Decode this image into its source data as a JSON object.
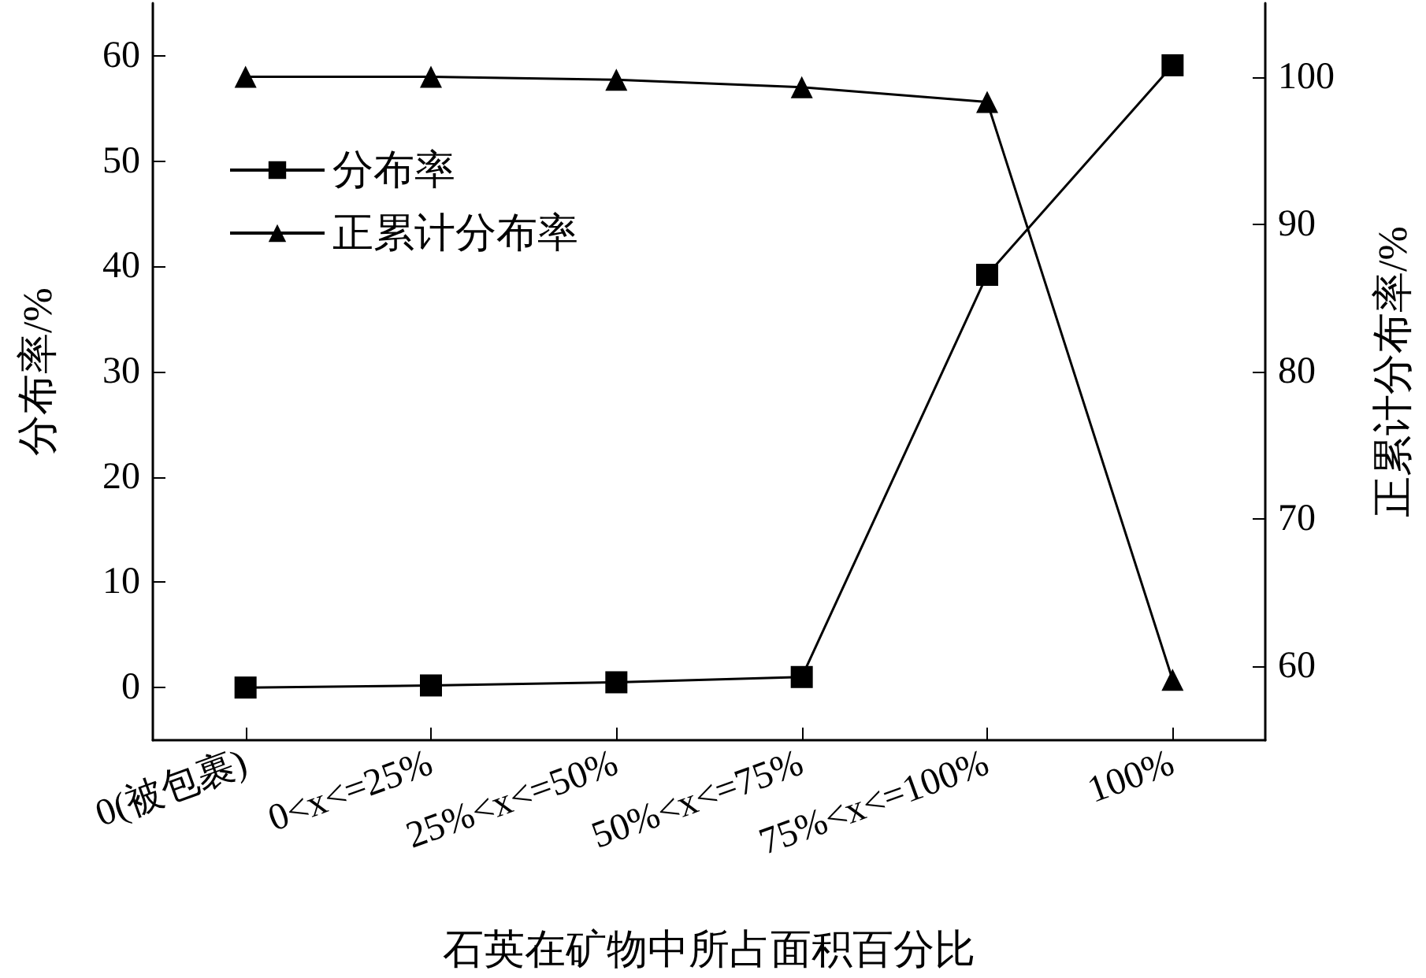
{
  "chart_data": {
    "type": "line",
    "xlabel": "石英在矿物中所占面积百分比",
    "ylabel": "分布率/%",
    "y2label": "正累计分布率/%",
    "categories": [
      "0(被包裹)",
      "0<x<=25%",
      "25%<x<=50%",
      "50%<x<=75%",
      "75%<x<=100%",
      "100%"
    ],
    "series": [
      {
        "name": "分布率",
        "color": "#000000",
        "marker": "square",
        "values": [
          0,
          0.2,
          0.5,
          1.0,
          39.2,
          59.1
        ]
      },
      {
        "name": "正累计分布率",
        "color": "#000000",
        "marker": "triangle",
        "axis": "y2",
        "values": [
          100,
          100,
          99.8,
          99.3,
          98.3,
          59.1
        ]
      }
    ],
    "ylim": [
      -5,
      65
    ],
    "yticks": [
      0,
      10,
      20,
      30,
      40,
      50,
      60
    ],
    "y2lim": [
      55,
      105
    ],
    "y2ticks": [
      60,
      70,
      80,
      90,
      100
    ],
    "legend": "top left",
    "grid": false,
    "line_style": "solid"
  }
}
